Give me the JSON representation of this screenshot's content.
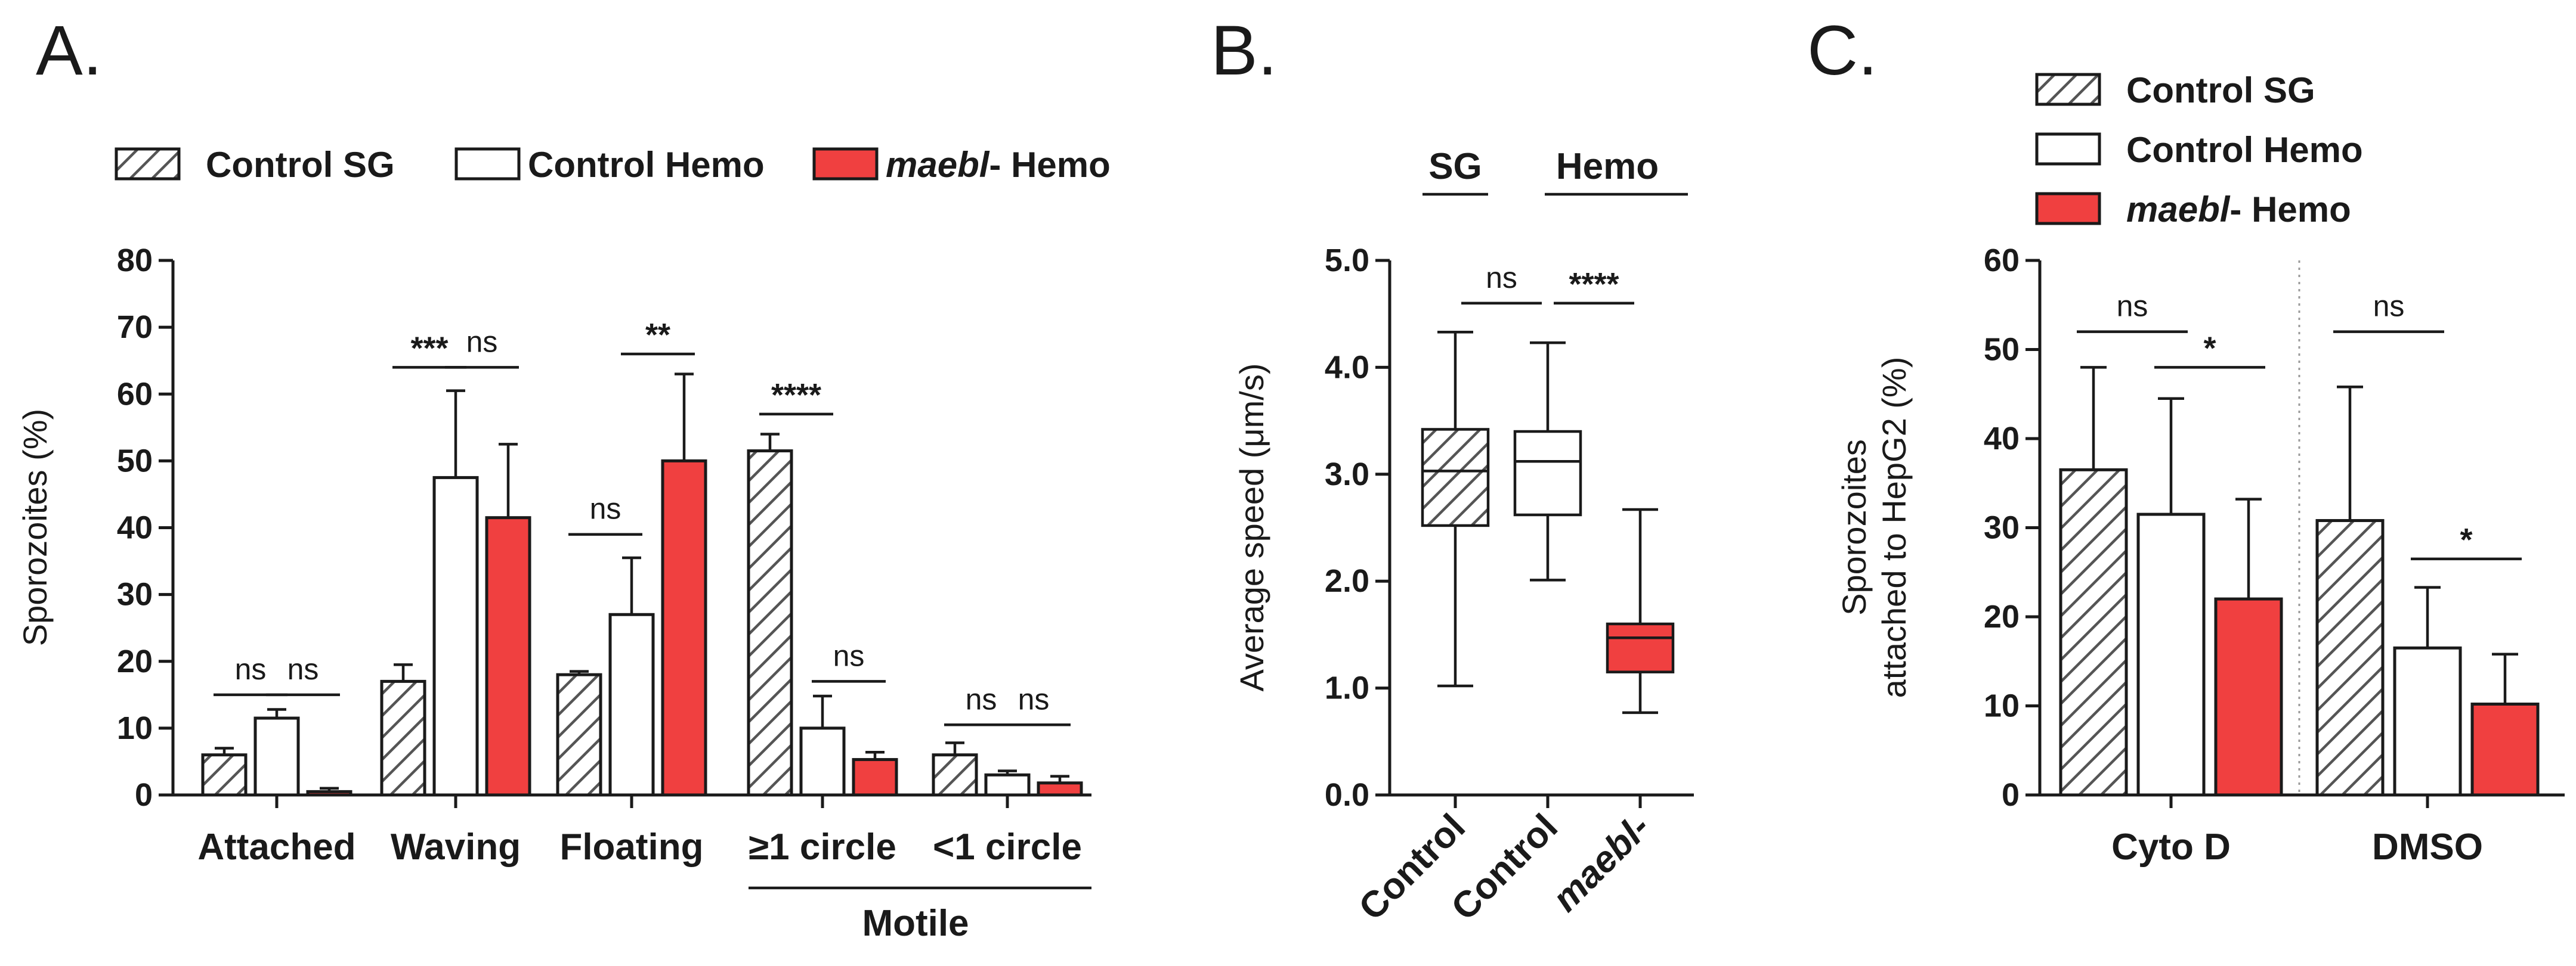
{
  "figure": {
    "panels": [
      "A.",
      "B.",
      "C."
    ],
    "colors": {
      "control_sg": "hatched-grey",
      "control_hemo": "#ffffff",
      "maebl_hemo": "#f04040"
    }
  },
  "chart_data": [
    {
      "type": "bar",
      "panel": "A.",
      "legend": [
        {
          "style": "hatch",
          "prefix": "",
          "italic": "",
          "text": "Control SG"
        },
        {
          "style": "open",
          "prefix": "",
          "italic": "",
          "text": "Control Hemo"
        },
        {
          "style": "red",
          "prefix": "",
          "italic": "maebl",
          "text": "- Hemo"
        }
      ],
      "ylabel": "Sporozoites (%)",
      "ylim": [
        0,
        80
      ],
      "yticks": [
        0,
        10,
        20,
        30,
        40,
        50,
        60,
        70,
        80
      ],
      "categories": [
        "Attached",
        "Waving",
        "Floating",
        "≥1 circle",
        "<1 circle"
      ],
      "group_label": "Motile",
      "series": [
        {
          "name": "Control SG",
          "style": "hatch",
          "values": [
            6,
            17,
            18,
            51.5,
            6
          ],
          "errors": [
            7,
            19.5,
            18.5,
            54,
            7.8
          ]
        },
        {
          "name": "Control Hemo",
          "style": "open",
          "values": [
            11.5,
            47.5,
            27,
            10,
            3
          ],
          "errors": [
            12.8,
            60.5,
            35.5,
            14.8,
            3.6
          ]
        },
        {
          "name": "maebl- Hemo",
          "style": "red",
          "values": [
            0.5,
            41.5,
            50,
            5.3,
            1.8
          ],
          "errors": [
            1,
            52.5,
            63,
            6.4,
            2.8
          ]
        }
      ],
      "significance": [
        {
          "label": "ns",
          "cat": 0,
          "from": 0,
          "to": 1,
          "y": 15
        },
        {
          "label": "ns",
          "cat": 0,
          "from": 1,
          "to": 2,
          "y": 15
        },
        {
          "label": "***",
          "cat": 1,
          "from": 0,
          "to": 1,
          "y": 64
        },
        {
          "label": "ns",
          "cat": 1,
          "from": 1,
          "to": 2,
          "y": 64
        },
        {
          "label": "ns",
          "cat": 2,
          "from": 0,
          "to": 1,
          "y": 39
        },
        {
          "label": "**",
          "cat": 2,
          "from": 1,
          "to": 2,
          "y": 66
        },
        {
          "label": "****",
          "cat": 3,
          "from": 0,
          "to": 1,
          "y": 57
        },
        {
          "label": "ns",
          "cat": 3,
          "from": 1,
          "to": 2,
          "y": 17
        },
        {
          "label": "ns",
          "cat": 4,
          "from": 0,
          "to": 1,
          "y": 10.5
        },
        {
          "label": "ns",
          "cat": 4,
          "from": 1,
          "to": 2,
          "y": 10.5
        }
      ]
    },
    {
      "type": "box",
      "panel": "B.",
      "ylabel": "Average speed (μm/s)",
      "ylim": [
        0,
        5
      ],
      "yticks": [
        "0.0",
        "1.0",
        "2.0",
        "3.0",
        "4.0",
        "5.0"
      ],
      "group_labels": [
        "SG",
        "Hemo"
      ],
      "boxes": [
        {
          "label": "Control",
          "italic": false,
          "style": "hatch",
          "min": 1.02,
          "q1": 2.52,
          "median": 3.03,
          "q3": 3.42,
          "max": 4.33
        },
        {
          "label": "Control",
          "italic": false,
          "style": "open",
          "min": 2.01,
          "q1": 2.62,
          "median": 3.12,
          "q3": 3.4,
          "max": 4.23
        },
        {
          "label": "maebl-",
          "italic": true,
          "style": "red",
          "min": 0.77,
          "q1": 1.15,
          "median": 1.47,
          "q3": 1.6,
          "max": 2.67
        }
      ],
      "significance": [
        {
          "label": "ns",
          "from": 0,
          "to": 1,
          "y": 4.6
        },
        {
          "label": "****",
          "from": 1,
          "to": 2,
          "y": 4.6
        }
      ]
    },
    {
      "type": "bar",
      "panel": "C.",
      "legend": [
        {
          "style": "hatch",
          "prefix": "",
          "italic": "",
          "text": "Control SG"
        },
        {
          "style": "open",
          "prefix": "",
          "italic": "",
          "text": "Control Hemo"
        },
        {
          "style": "red",
          "prefix": "",
          "italic": "maebl",
          "text": "- Hemo"
        }
      ],
      "ylabel_lines": [
        "Sporozoites",
        "attached to HepG2 (%)"
      ],
      "ylim": [
        0,
        60
      ],
      "yticks": [
        0,
        10,
        20,
        30,
        40,
        50,
        60
      ],
      "categories": [
        "Cyto D",
        "DMSO"
      ],
      "series": [
        {
          "name": "Control SG",
          "style": "hatch",
          "values": [
            36.5,
            30.8
          ],
          "errors": [
            48,
            45.8
          ]
        },
        {
          "name": "Control Hemo",
          "style": "open",
          "values": [
            31.5,
            16.5
          ],
          "errors": [
            44.5,
            23.3
          ]
        },
        {
          "name": "maebl- Hemo",
          "style": "red",
          "values": [
            22,
            10.2
          ],
          "errors": [
            33.2,
            15.8
          ]
        }
      ],
      "significance": [
        {
          "label": "ns",
          "cat": 0,
          "from": 0,
          "to": 1,
          "y": 52
        },
        {
          "label": "*",
          "cat": 0,
          "from": 1,
          "to": 2,
          "y": 48
        },
        {
          "label": "ns",
          "cat": 1,
          "from": 0,
          "to": 1,
          "y": 52
        },
        {
          "label": "*",
          "cat": 1,
          "from": 1,
          "to": 2,
          "y": 26.5
        }
      ]
    }
  ]
}
